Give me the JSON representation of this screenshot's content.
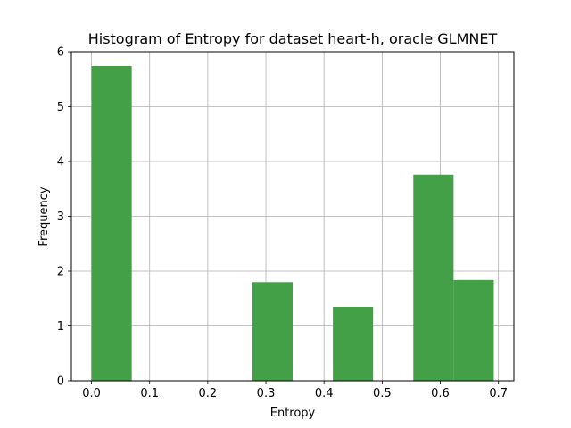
{
  "chart_data": {
    "type": "bar",
    "title": "Histogram of Entropy for dataset heart-h, oracle GLMNET",
    "xlabel": "Entropy",
    "ylabel": "Frequency",
    "xlim": [
      -0.0346,
      0.7266
    ],
    "ylim": [
      0,
      6
    ],
    "grid": true,
    "bar_color": "#43a047",
    "xticks": [
      "0.0",
      "0.1",
      "0.2",
      "0.3",
      "0.4",
      "0.5",
      "0.6",
      "0.7"
    ],
    "xtick_values": [
      0.0,
      0.1,
      0.2,
      0.3,
      0.4,
      0.5,
      0.6,
      0.7
    ],
    "yticks": [
      "0",
      "1",
      "2",
      "3",
      "4",
      "5",
      "6"
    ],
    "ytick_values": [
      0,
      1,
      2,
      3,
      4,
      5,
      6
    ],
    "bins": [
      {
        "x0": 0.0,
        "x1": 0.0692,
        "value": 5.74
      },
      {
        "x0": 0.0692,
        "x1": 0.1384,
        "value": 0
      },
      {
        "x0": 0.1384,
        "x1": 0.2076,
        "value": 0
      },
      {
        "x0": 0.2076,
        "x1": 0.2768,
        "value": 0
      },
      {
        "x0": 0.2768,
        "x1": 0.346,
        "value": 1.8
      },
      {
        "x0": 0.346,
        "x1": 0.4152,
        "value": 0
      },
      {
        "x0": 0.4152,
        "x1": 0.4844,
        "value": 1.35
      },
      {
        "x0": 0.4844,
        "x1": 0.5536,
        "value": 0
      },
      {
        "x0": 0.5536,
        "x1": 0.6228,
        "value": 3.76
      },
      {
        "x0": 0.6228,
        "x1": 0.692,
        "value": 1.84
      }
    ]
  }
}
